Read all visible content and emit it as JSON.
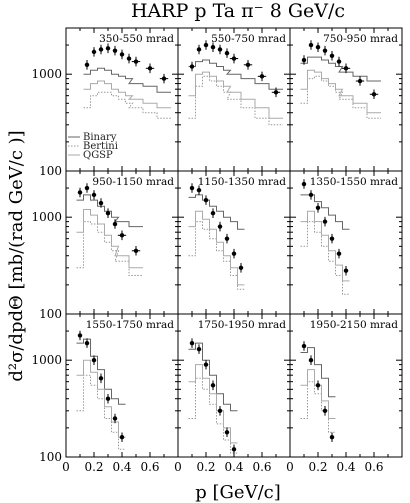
{
  "title": "HARP p Ta π⁻ 8 GeV/c",
  "xlabel": "p [GeV/c]",
  "ylabel": "d²σ/dpdΘ [mb/(rad GeV/c )]",
  "legend": [
    "Binary",
    "Bertini",
    "QGSP"
  ],
  "colors": {
    "data": "#000000",
    "binary": "#666666",
    "bertini": "#999999",
    "qgsp": "#aaaaaa"
  },
  "chart_data": {
    "type": "scatter",
    "xlim": [
      0,
      0.8
    ],
    "ylim": [
      100,
      3000
    ],
    "yscale": "log",
    "x_ticks": [
      0,
      0.2,
      0.4,
      0.6
    ],
    "x_tick_labels": [
      "0",
      "0.2",
      "0.4",
      "0.6"
    ],
    "y_ticks": [
      100,
      1000
    ],
    "y_tick_labels": [
      "100",
      "1000"
    ],
    "grid": false,
    "legend_position": "bottom-left of first panel",
    "panels": [
      {
        "label": "350-550 mrad",
        "x": [
          0.15,
          0.2,
          0.25,
          0.3,
          0.35,
          0.4,
          0.45,
          0.5,
          0.6,
          0.7
        ],
        "y": [
          1250,
          1700,
          1800,
          1850,
          1750,
          1600,
          1450,
          1350,
          1150,
          900
        ],
        "binary": [
          1000,
          1100,
          1150,
          1100,
          1000,
          950,
          900,
          800,
          750,
          650
        ],
        "bertini": [
          450,
          600,
          650,
          650,
          600,
          550,
          500,
          450,
          400,
          350
        ],
        "qgsp": [
          700,
          800,
          850,
          800,
          700,
          650,
          600,
          550,
          500,
          450
        ]
      },
      {
        "label": "550-750 mrad",
        "x": [
          0.1,
          0.15,
          0.2,
          0.25,
          0.3,
          0.35,
          0.4,
          0.5,
          0.6,
          0.7
        ],
        "y": [
          1200,
          1800,
          2000,
          1900,
          1800,
          1650,
          1450,
          1250,
          950,
          650
        ],
        "binary": [
          1200,
          1350,
          1400,
          1300,
          1200,
          1100,
          1000,
          900,
          800,
          700
        ],
        "bertini": [
          350,
          750,
          950,
          850,
          750,
          650,
          550,
          450,
          350,
          300
        ],
        "qgsp": [
          600,
          1000,
          1050,
          950,
          850,
          750,
          650,
          550,
          450,
          350
        ]
      },
      {
        "label": "750-950 mrad",
        "x": [
          0.1,
          0.15,
          0.2,
          0.25,
          0.3,
          0.35,
          0.4,
          0.5,
          0.6
        ],
        "y": [
          1400,
          2000,
          1900,
          1750,
          1550,
          1350,
          1150,
          850,
          620
        ],
        "binary": [
          1300,
          1500,
          1500,
          1400,
          1300,
          1200,
          1050,
          950,
          850
        ],
        "bertini": [
          500,
          900,
          950,
          850,
          750,
          650,
          550,
          450,
          350
        ],
        "qgsp": [
          700,
          1100,
          1050,
          900,
          800,
          700,
          600,
          500,
          400
        ]
      },
      {
        "label": "950-1150 mrad",
        "x": [
          0.1,
          0.15,
          0.2,
          0.25,
          0.3,
          0.35,
          0.4,
          0.5
        ],
        "y": [
          1800,
          2000,
          1700,
          1400,
          1100,
          850,
          650,
          450
        ],
        "binary": [
          1500,
          1700,
          1500,
          1300,
          1150,
          1000,
          900,
          800
        ],
        "bertini": [
          300,
          900,
          850,
          700,
          550,
          450,
          350,
          250
        ],
        "qgsp": [
          700,
          1200,
          1050,
          850,
          650,
          500,
          400,
          300
        ]
      },
      {
        "label": "1150-1350 mrad",
        "x": [
          0.1,
          0.15,
          0.2,
          0.25,
          0.3,
          0.35,
          0.4,
          0.45
        ],
        "y": [
          2000,
          1900,
          1500,
          1100,
          800,
          600,
          420,
          300
        ],
        "binary": [
          1600,
          1700,
          1500,
          1300,
          1150,
          1000,
          900,
          750
        ],
        "bertini": [
          400,
          900,
          750,
          600,
          450,
          350,
          250,
          180
        ],
        "qgsp": [
          800,
          1150,
          950,
          750,
          550,
          400,
          300,
          200
        ]
      },
      {
        "label": "1350-1550 mrad",
        "x": [
          0.1,
          0.15,
          0.2,
          0.25,
          0.3,
          0.35,
          0.4
        ],
        "y": [
          2200,
          1700,
          1250,
          900,
          600,
          420,
          280
        ],
        "binary": [
          1700,
          1700,
          1450,
          1250,
          1050,
          900,
          750
        ],
        "bertini": [
          500,
          900,
          700,
          500,
          350,
          250,
          160
        ],
        "qgsp": [
          900,
          1150,
          900,
          650,
          450,
          320,
          220
        ]
      },
      {
        "label": "1550-1750 mrad",
        "x": [
          0.1,
          0.15,
          0.2,
          0.25,
          0.3,
          0.35,
          0.4
        ],
        "y": [
          1800,
          1500,
          1000,
          650,
          400,
          250,
          160
        ],
        "binary": [
          1500,
          1650,
          1100,
          800,
          500,
          400,
          350
        ],
        "bertini": [
          300,
          700,
          550,
          400,
          250,
          180,
          120
        ],
        "qgsp": [
          700,
          1000,
          750,
          500,
          330,
          230,
          160
        ]
      },
      {
        "label": "1750-1950 mrad",
        "x": [
          0.1,
          0.15,
          0.2,
          0.25,
          0.3,
          0.35,
          0.4
        ],
        "y": [
          1500,
          1300,
          900,
          550,
          300,
          180,
          120
        ],
        "binary": [
          1300,
          1500,
          1000,
          700,
          450,
          350,
          300
        ],
        "bertini": [
          250,
          650,
          500,
          350,
          220,
          150,
          110
        ],
        "qgsp": [
          600,
          900,
          650,
          450,
          300,
          200,
          140
        ]
      },
      {
        "label": "1950-2150 mrad",
        "x": [
          0.1,
          0.15,
          0.2,
          0.25,
          0.3
        ],
        "y": [
          1400,
          1000,
          550,
          300,
          160
        ],
        "binary": [
          1200,
          1350,
          900,
          650,
          420
        ],
        "bertini": [
          250,
          600,
          450,
          300,
          180
        ],
        "qgsp": [
          550,
          800,
          550,
          380,
          250
        ]
      }
    ]
  }
}
